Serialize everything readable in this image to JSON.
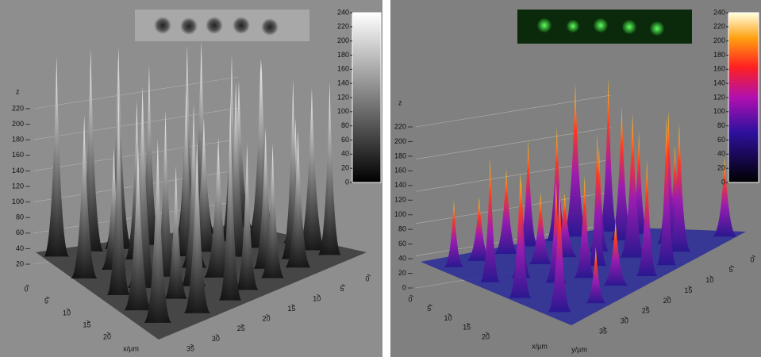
{
  "panels": [
    {
      "colorbar_ticks": [
        0,
        20,
        40,
        60,
        80,
        100,
        120,
        140,
        160,
        180,
        200,
        220,
        240
      ],
      "z_label": "z",
      "z_ticks": [
        20,
        40,
        60,
        80,
        100,
        120,
        140,
        160,
        180,
        200,
        220
      ],
      "x_ticks": [
        0,
        5,
        10,
        15,
        20
      ],
      "x_label": "x/µm",
      "y_ticks": [
        0,
        5,
        10,
        15,
        20,
        25,
        30,
        35
      ]
    },
    {
      "colorbar_ticks": [
        0,
        20,
        40,
        60,
        80,
        100,
        120,
        140,
        160,
        180,
        200,
        220,
        240
      ],
      "z_label": "z",
      "z_ticks": [
        0,
        20,
        40,
        60,
        80,
        100,
        120,
        140,
        160,
        180,
        200,
        220
      ],
      "x_ticks": [
        0,
        5,
        10,
        15,
        20
      ],
      "x_label": "x/µm",
      "y_ticks": [
        0,
        5,
        10,
        15,
        20,
        25,
        30,
        35
      ],
      "y_label": "y/µm"
    }
  ]
}
